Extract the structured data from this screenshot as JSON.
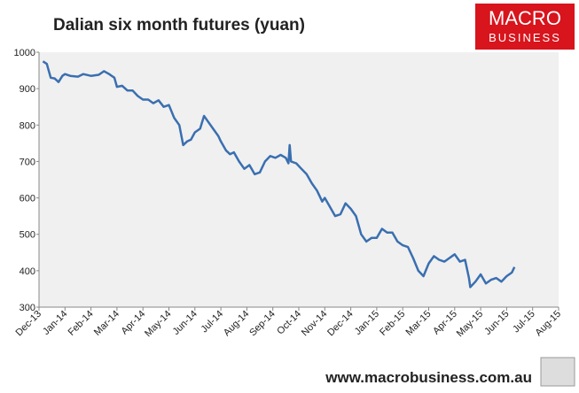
{
  "chart_data": {
    "type": "line",
    "title": "Dalian six month futures (yuan)",
    "xlim": [
      0,
      20
    ],
    "xticks": [
      {
        "value": 0,
        "label": "Dec-13"
      },
      {
        "value": 1,
        "label": "Jan-14"
      },
      {
        "value": 2,
        "label": "Feb-14"
      },
      {
        "value": 3,
        "label": "Mar-14"
      },
      {
        "value": 4,
        "label": "Apr-14"
      },
      {
        "value": 5,
        "label": "May-14"
      },
      {
        "value": 6,
        "label": "Jun-14"
      },
      {
        "value": 7,
        "label": "Jul-14"
      },
      {
        "value": 8,
        "label": "Aug-14"
      },
      {
        "value": 9,
        "label": "Sep-14"
      },
      {
        "value": 10,
        "label": "Oct-14"
      },
      {
        "value": 11,
        "label": "Nov-14"
      },
      {
        "value": 12,
        "label": "Dec-14"
      },
      {
        "value": 13,
        "label": "Jan-15"
      },
      {
        "value": 14,
        "label": "Feb-15"
      },
      {
        "value": 15,
        "label": "Mar-15"
      },
      {
        "value": 16,
        "label": "Apr-15"
      },
      {
        "value": 17,
        "label": "May-15"
      },
      {
        "value": 18,
        "label": "Jun-15"
      },
      {
        "value": 19,
        "label": "Jul-15"
      },
      {
        "value": 20,
        "label": "Aug-15"
      }
    ],
    "ylim": [
      300,
      1000
    ],
    "yticks": [
      300,
      400,
      500,
      600,
      700,
      800,
      900,
      1000
    ],
    "grid": false,
    "series": [
      {
        "color": "#3a6fb0",
        "x": [
          0.15,
          0.3,
          0.45,
          0.6,
          0.75,
          0.9,
          1.0,
          1.2,
          1.5,
          1.7,
          2.0,
          2.3,
          2.5,
          2.7,
          2.9,
          3.0,
          3.2,
          3.4,
          3.6,
          3.8,
          4.0,
          4.2,
          4.4,
          4.6,
          4.8,
          5.0,
          5.2,
          5.4,
          5.55,
          5.7,
          5.85,
          6.0,
          6.2,
          6.35,
          6.5,
          6.7,
          6.9,
          7.0,
          7.2,
          7.35,
          7.5,
          7.7,
          7.9,
          8.1,
          8.3,
          8.5,
          8.7,
          8.9,
          9.1,
          9.3,
          9.5,
          9.6,
          9.65,
          9.7,
          9.9,
          10.1,
          10.3,
          10.5,
          10.7,
          10.9,
          11.0,
          11.2,
          11.4,
          11.6,
          11.8,
          12.0,
          12.2,
          12.4,
          12.6,
          12.8,
          13.0,
          13.2,
          13.4,
          13.6,
          13.8,
          14.0,
          14.2,
          14.4,
          14.6,
          14.8,
          15.0,
          15.2,
          15.4,
          15.6,
          15.8,
          16.0,
          16.2,
          16.4,
          16.55,
          16.6,
          16.8,
          17.0,
          17.2,
          17.4,
          17.6,
          17.8,
          18.0,
          18.2,
          18.3
        ],
        "values": [
          975,
          968,
          930,
          928,
          918,
          935,
          940,
          935,
          933,
          940,
          935,
          938,
          948,
          940,
          930,
          905,
          908,
          895,
          895,
          880,
          870,
          870,
          860,
          868,
          850,
          855,
          820,
          800,
          745,
          755,
          760,
          780,
          790,
          825,
          810,
          790,
          770,
          755,
          730,
          720,
          725,
          700,
          680,
          690,
          665,
          670,
          700,
          715,
          710,
          718,
          710,
          695,
          745,
          700,
          695,
          680,
          665,
          640,
          620,
          590,
          600,
          575,
          550,
          555,
          585,
          570,
          550,
          500,
          480,
          490,
          490,
          515,
          505,
          505,
          480,
          470,
          465,
          435,
          400,
          385,
          420,
          440,
          430,
          425,
          435,
          445,
          425,
          430,
          380,
          355,
          370,
          390,
          365,
          375,
          380,
          370,
          385,
          395,
          410
        ]
      }
    ]
  },
  "logo": {
    "line1": "MACRO",
    "line2": "BUSINESS"
  },
  "footer": "www.macrobusiness.com.au"
}
